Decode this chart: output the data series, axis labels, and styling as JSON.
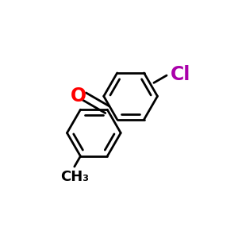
{
  "background_color": "#ffffff",
  "bond_color": "#000000",
  "o_color": "#ff0000",
  "cl_color": "#aa00aa",
  "ch3_color": "#000000",
  "line_width": 2.0,
  "fig_size": [
    3.0,
    3.0
  ],
  "dpi": 100,
  "o_label": "O",
  "cl_label": "Cl",
  "ch3_label": "CH₃",
  "font_size_o": 17,
  "font_size_cl": 17,
  "font_size_ch3": 13
}
